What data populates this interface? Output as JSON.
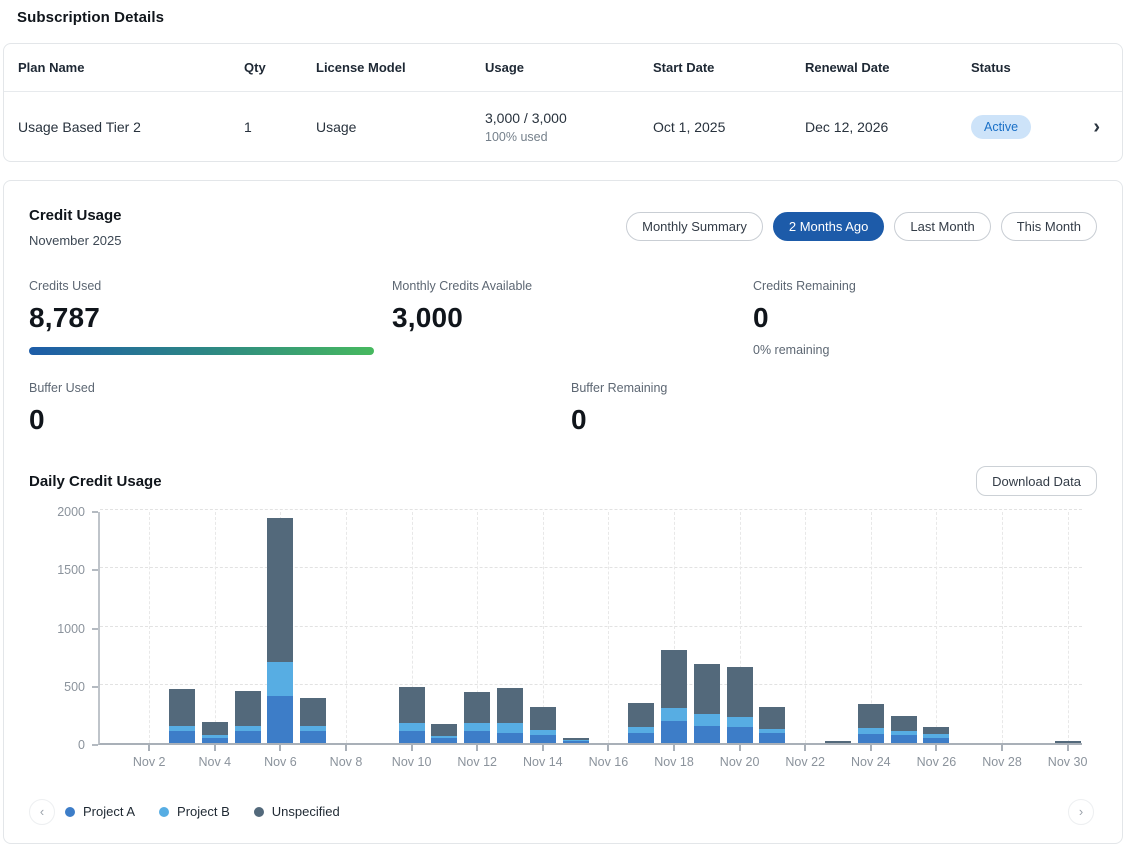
{
  "page_title": "Subscription Details",
  "table": {
    "headers": [
      "Plan Name",
      "Qty",
      "License Model",
      "Usage",
      "Start Date",
      "Renewal Date",
      "Status"
    ],
    "row": {
      "plan_name": "Usage Based Tier 2",
      "qty": "1",
      "license_model": "Usage",
      "usage_primary": "3,000 / 3,000",
      "usage_secondary": "100% used",
      "start_date": "Oct 1, 2025",
      "renewal_date": "Dec 12, 2026",
      "status": "Active",
      "chevron": "›"
    }
  },
  "credit_usage": {
    "title": "Credit Usage",
    "period": "November 2025",
    "buttons": [
      {
        "label": "Monthly Summary",
        "active": false
      },
      {
        "label": "2 Months Ago",
        "active": true
      },
      {
        "label": "Last Month",
        "active": false
      },
      {
        "label": "This Month",
        "active": false
      }
    ],
    "stats": {
      "credits_used_label": "Credits Used",
      "credits_used_value": "8,787",
      "monthly_available_label": "Monthly Credits Available",
      "monthly_available_value": "3,000",
      "remaining_label": "Credits Remaining",
      "remaining_value": "0",
      "remaining_sub": "0% remaining",
      "buffer_used_label": "Buffer Used",
      "buffer_used_value": "0",
      "buffer_remaining_label": "Buffer Remaining",
      "buffer_remaining_value": "0"
    },
    "colors": {
      "active_button": "#1d5ba9",
      "status_badge_bg": "#cde3f9",
      "status_badge_text": "#1a70c7",
      "progress_gradient_start": "#1d5ca8",
      "progress_gradient_end": "#47b95f"
    }
  },
  "daily": {
    "title": "Daily Credit Usage",
    "download_label": "Download Data",
    "prev_icon": "‹",
    "next_icon": "›"
  },
  "chart_data": {
    "type": "bar",
    "stacked": true,
    "title": "Daily Credit Usage",
    "xlabel": "",
    "ylabel": "",
    "ylim": [
      0,
      2000
    ],
    "yticks": [
      0,
      500,
      1000,
      1500,
      2000
    ],
    "grid": "dashed",
    "legend_position": "bottom",
    "x": [
      "Nov 1",
      "Nov 2",
      "Nov 3",
      "Nov 4",
      "Nov 5",
      "Nov 6",
      "Nov 7",
      "Nov 8",
      "Nov 9",
      "Nov 10",
      "Nov 11",
      "Nov 12",
      "Nov 13",
      "Nov 14",
      "Nov 15",
      "Nov 16",
      "Nov 17",
      "Nov 18",
      "Nov 19",
      "Nov 20",
      "Nov 21",
      "Nov 22",
      "Nov 23",
      "Nov 24",
      "Nov 25",
      "Nov 26",
      "Nov 27",
      "Nov 28",
      "Nov 29",
      "Nov 30"
    ],
    "x_tick_labels": [
      "Nov 2",
      "Nov 4",
      "Nov 6",
      "Nov 8",
      "Nov 10",
      "Nov 12",
      "Nov 14",
      "Nov 16",
      "Nov 18",
      "Nov 20",
      "Nov 22",
      "Nov 24",
      "Nov 26",
      "Nov 28",
      "Nov 30"
    ],
    "series": [
      {
        "name": "Project A",
        "color": "#3d7dc8",
        "values": [
          0,
          0,
          100,
          40,
          100,
          405,
          105,
          0,
          0,
          105,
          40,
          100,
          85,
          70,
          15,
          0,
          85,
          185,
          145,
          135,
          90,
          0,
          0,
          80,
          70,
          45,
          0,
          0,
          0,
          0
        ]
      },
      {
        "name": "Project B",
        "color": "#57ade3",
        "values": [
          0,
          0,
          50,
          30,
          50,
          290,
          45,
          0,
          0,
          65,
          20,
          70,
          85,
          45,
          10,
          0,
          50,
          115,
          105,
          90,
          30,
          0,
          0,
          50,
          35,
          30,
          0,
          0,
          0,
          0
        ]
      },
      {
        "name": "Unspecified",
        "color": "#53697b",
        "values": [
          0,
          0,
          310,
          110,
          295,
          1240,
          240,
          0,
          0,
          315,
          100,
          270,
          305,
          190,
          20,
          0,
          205,
          500,
          425,
          430,
          190,
          0,
          20,
          205,
          130,
          60,
          0,
          0,
          0,
          15
        ]
      }
    ]
  }
}
